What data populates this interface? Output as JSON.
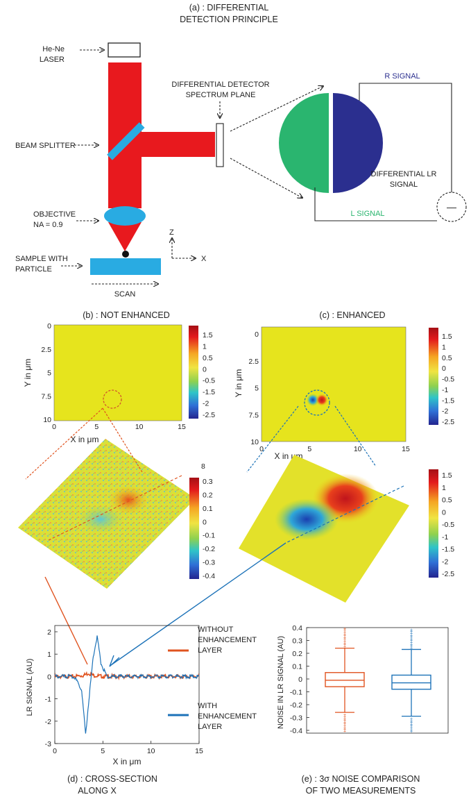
{
  "titles": {
    "a_line1": "(a) : DIFFERENTIAL",
    "a_line2": "DETECTION PRINCIPLE",
    "b": "(b) : NOT ENHANCED",
    "c": "(c) :  ENHANCED",
    "d_line1": "(d) : CROSS-SECTION",
    "d_line2": "ALONG X",
    "e_line1": "(e) : 3σ NOISE COMPARISON",
    "e_line2": "OF TWO MEASUREMENTS"
  },
  "setup": {
    "laser_1": "He-Ne",
    "laser_2": "LASER",
    "splitter": "BEAM SPLITTER",
    "detector_1": "DIFFERENTIAL DETECTOR",
    "detector_2": "SPECTRUM PLANE",
    "objective_1": "OBJECTIVE",
    "objective_2": "NA = 0.9",
    "sample_1": "SAMPLE WITH",
    "sample_2": "PARTICLE",
    "scan": "SCAN",
    "axis_z": "Z",
    "axis_x": "X",
    "r_signal": "R SIGNAL",
    "l_signal": "L SIGNAL",
    "diff_1": "DIFFERENTIAL LR",
    "diff_2": "SIGNAL",
    "minus": "—"
  },
  "colors": {
    "laser": "#e8191e",
    "splitter": "#29abe2",
    "detector_left": "#2ab56f",
    "detector_right": "#2b2f8f",
    "map_bg": "#e6e41d",
    "without": "#e0531f",
    "with": "#1c72b8"
  },
  "maps": {
    "xlabel": "X in μm",
    "ylabel": "Y in μm",
    "x_ticks": [
      "0",
      "5",
      "10",
      "15"
    ],
    "y_ticks_b": [
      "0",
      "2.5",
      "5",
      "7.5",
      "10"
    ],
    "y_ticks_c": [
      "0",
      "2.5",
      "5",
      "7.5",
      "10"
    ]
  },
  "colorbars": {
    "b_2d": [
      "1.5",
      "1",
      "0.5",
      "0",
      "-0.5",
      "-1.5",
      "-2",
      "-2.5"
    ],
    "c_2d": [
      "1.5",
      "1",
      "0.5",
      "0",
      "-0.5",
      "-1",
      "-1.5",
      "-2",
      "-2.5"
    ],
    "b_3d_top": "8",
    "b_3d": [
      "0.3",
      "0.2",
      "0.1",
      "0",
      "-0.1",
      "-0.2",
      "-0.3",
      "-0.4"
    ],
    "c_3d": [
      "1.5",
      "1",
      "0.5",
      "0",
      "-0.5",
      "-1",
      "-1.5",
      "-2",
      "-2.5"
    ]
  },
  "chart_data": [
    {
      "type": "line",
      "xlabel": "X in μm",
      "ylabel": "LR SIGNAL (AU)",
      "xlim": [
        0,
        15
      ],
      "ylim": [
        -3,
        2
      ],
      "x_ticks": [
        "0",
        "5",
        "10",
        "15"
      ],
      "y_ticks": [
        "2",
        "1",
        "0",
        "-1",
        "-2",
        "-3"
      ],
      "series": [
        {
          "name": "WITHOUT ENHANCEMENT LAYER",
          "x": [
            0,
            2,
            3,
            3.5,
            4,
            5,
            7,
            10,
            15
          ],
          "y": [
            0,
            0,
            0.05,
            0.15,
            0.05,
            0,
            0,
            0,
            0
          ]
        },
        {
          "name": "WITH ENHANCEMENT LAYER",
          "x": [
            0,
            2,
            2.8,
            3.2,
            3.6,
            4.0,
            4.4,
            4.8,
            5.4,
            6,
            10,
            15
          ],
          "y": [
            0,
            0,
            -0.6,
            -2.6,
            -0.8,
            0.9,
            1.8,
            0.6,
            0,
            0,
            0,
            0
          ]
        }
      ],
      "legend": [
        {
          "line1": "WITHOUT",
          "line2": "ENHANCEMENT",
          "line3": "LAYER"
        },
        {
          "line1": "WITH",
          "line2": "ENHANCEMENT",
          "line3": " LAYER"
        }
      ]
    },
    {
      "type": "box",
      "ylabel": "NOISE IN LR SIGNAL (AU)",
      "ylim": [
        -0.4,
        0.4
      ],
      "y_ticks": [
        "0.4",
        "0.3",
        "0.2",
        "0.1",
        "0",
        "-0.1",
        "-0.2",
        "-0.3",
        "-0.4"
      ],
      "boxes": [
        {
          "name": "without",
          "q1": -0.06,
          "median": -0.01,
          "q3": 0.05,
          "whisker_low": -0.26,
          "whisker_high": 0.24
        },
        {
          "name": "with",
          "q1": -0.08,
          "median": -0.03,
          "q3": 0.03,
          "whisker_low": -0.29,
          "whisker_high": 0.23
        }
      ]
    }
  ]
}
